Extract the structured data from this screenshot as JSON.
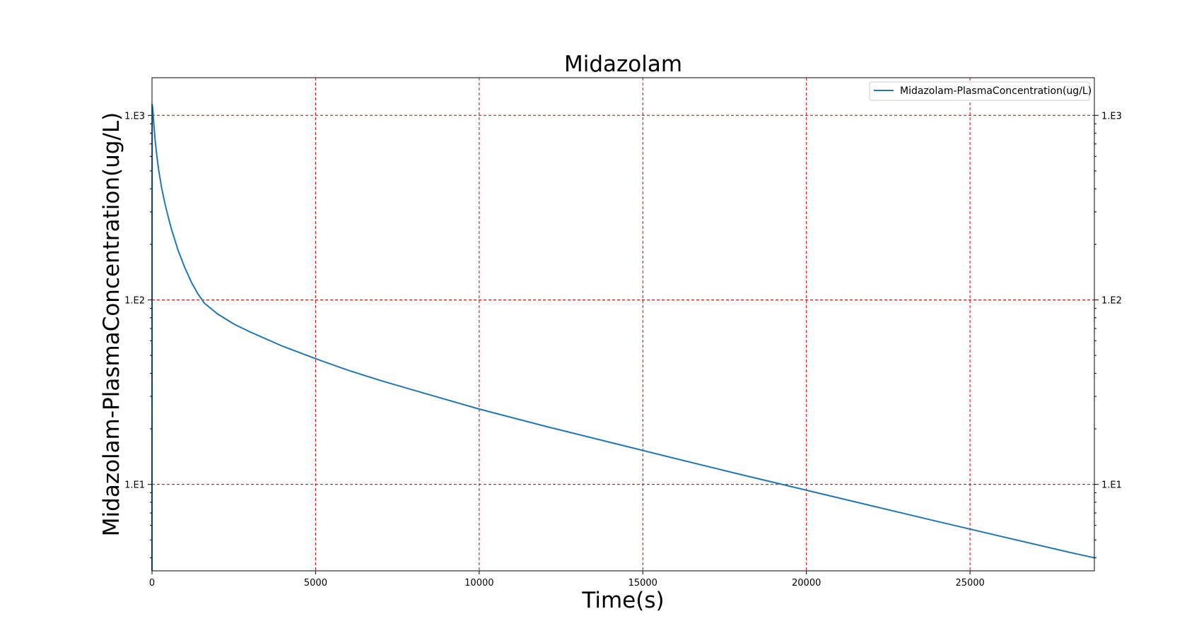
{
  "chart_data": {
    "type": "line",
    "title": "Midazolam",
    "xlabel": "Time(s)",
    "ylabel": "Midazolam-PlasmaConcentration(ug/L)",
    "xlim": [
      0,
      28800
    ],
    "ylim": [
      3.4,
      1600
    ],
    "yscale": "log",
    "grid": true,
    "grid_color": "#cc0000",
    "line_color": "#1f77b4",
    "legend_position": "top-right",
    "x_ticks": [
      0,
      5000,
      10000,
      15000,
      20000,
      25000
    ],
    "x_tick_labels": [
      "0",
      "5000",
      "10000",
      "15000",
      "20000",
      "25000"
    ],
    "y_ticks": [
      10,
      100,
      1000
    ],
    "y_tick_labels": [
      "1.E1",
      "1.E2",
      "1.E3"
    ],
    "series": [
      {
        "name": "Midazolam-PlasmaConcentration(ug/L)",
        "x": [
          0,
          5,
          30,
          60,
          100,
          150,
          200,
          300,
          400,
          500,
          600,
          800,
          1000,
          1200,
          1400,
          1600,
          2000,
          2500,
          3000,
          4000,
          5000,
          6000,
          7000,
          8000,
          9000,
          10000,
          12000,
          14000,
          16000,
          18000,
          20000,
          22000,
          24000,
          26000,
          28000,
          28800
        ],
        "y": [
          3.4,
          1150,
          1050,
          880,
          720,
          600,
          510,
          400,
          330,
          280,
          240,
          185,
          150,
          125,
          108,
          96,
          84,
          74,
          67,
          56,
          48,
          41.5,
          36.5,
          32.4,
          28.8,
          25.6,
          20.7,
          16.9,
          13.8,
          11.3,
          9.3,
          7.65,
          6.3,
          5.2,
          4.3,
          4.0
        ]
      }
    ]
  }
}
